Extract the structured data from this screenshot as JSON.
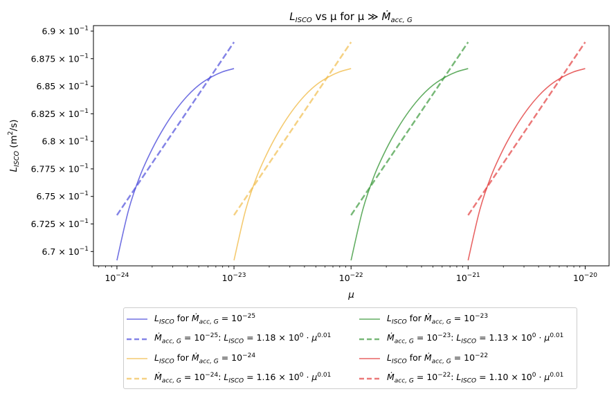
{
  "chart_data": {
    "type": "line",
    "title": {
      "main": "L",
      "main_sub": "ISCO",
      "rest": " vs μ for μ ≫ ",
      "mdot": "Ṁ",
      "mdot_sub": "acc, G"
    },
    "xlabel": "μ",
    "ylabel": {
      "main": "L",
      "sub": "ISCO",
      "unit_pre": " (m",
      "unit_sup": "2",
      "unit_post": "/s)"
    },
    "x_scale": "log",
    "xlim": [
      6.3e-25,
      1.6e-20
    ],
    "ylim": [
      0.6687,
      0.6905
    ],
    "x_ticks": [
      {
        "exp": "−24",
        "value": 1e-24
      },
      {
        "exp": "−23",
        "value": 1e-23
      },
      {
        "exp": "−22",
        "value": 1e-22
      },
      {
        "exp": "−21",
        "value": 1e-21
      },
      {
        "exp": "−20",
        "value": 1e-20
      }
    ],
    "y_ticks": [
      {
        "mant": "6.7",
        "value": 0.67
      },
      {
        "mant": "6.725",
        "value": 0.6725
      },
      {
        "mant": "6.75",
        "value": 0.675
      },
      {
        "mant": "6.775",
        "value": 0.6775
      },
      {
        "mant": "6.8",
        "value": 0.68
      },
      {
        "mant": "6.825",
        "value": 0.6825
      },
      {
        "mant": "6.85",
        "value": 0.685
      },
      {
        "mant": "6.875",
        "value": 0.6875
      },
      {
        "mant": "6.9",
        "value": 0.69
      }
    ],
    "y_tick_base": "10",
    "y_tick_exp": "−1",
    "x_tick_base": "10",
    "grid": false,
    "legend_position": "below",
    "series": [
      {
        "kind": "solid",
        "color": "#4040d8",
        "mdot_exp": "−25",
        "x": [
          1e-24,
          1.26e-24,
          1.58e-24,
          2e-24,
          2.51e-24,
          3.16e-24,
          3.98e-24,
          5.01e-24,
          6.31e-24,
          7.94e-24,
          1e-23
        ],
        "y": [
          0.6692,
          0.6738,
          0.6769,
          0.6793,
          0.6812,
          0.6828,
          0.6841,
          0.6851,
          0.6858,
          0.6863,
          0.6866
        ]
      },
      {
        "kind": "dashed",
        "color": "#4040d8",
        "mdot_exp": "−25",
        "coef": "1.18",
        "coef_exp": "0",
        "power": "0.01",
        "x": [
          1e-24,
          1e-23
        ],
        "y": [
          0.6733,
          0.689
        ]
      },
      {
        "kind": "solid",
        "color": "#f0b840",
        "mdot_exp": "−24",
        "x": [
          1e-23,
          1.26e-23,
          1.58e-23,
          2e-23,
          2.51e-23,
          3.16e-23,
          3.98e-23,
          5.01e-23,
          6.31e-23,
          7.94e-23,
          1e-22
        ],
        "y": [
          0.6692,
          0.6738,
          0.6769,
          0.6793,
          0.6812,
          0.6828,
          0.6841,
          0.6851,
          0.6858,
          0.6863,
          0.6866
        ]
      },
      {
        "kind": "dashed",
        "color": "#f0b840",
        "mdot_exp": "−24",
        "coef": "1.16",
        "coef_exp": "0",
        "power": "0.01",
        "x": [
          1e-23,
          1e-22
        ],
        "y": [
          0.6733,
          0.689
        ]
      },
      {
        "kind": "solid",
        "color": "#2e922e",
        "mdot_exp": "−23",
        "x": [
          1e-22,
          1.26e-22,
          1.58e-22,
          2e-22,
          2.51e-22,
          3.16e-22,
          3.98e-22,
          5.01e-22,
          6.31e-22,
          7.94e-22,
          1e-21
        ],
        "y": [
          0.6692,
          0.6738,
          0.6769,
          0.6793,
          0.6812,
          0.6828,
          0.6841,
          0.6851,
          0.6858,
          0.6863,
          0.6866
        ]
      },
      {
        "kind": "dashed",
        "color": "#2e922e",
        "mdot_exp": "−23",
        "coef": "1.13",
        "coef_exp": "0",
        "power": "0.01",
        "x": [
          1e-22,
          1e-21
        ],
        "y": [
          0.6733,
          0.689
        ]
      },
      {
        "kind": "solid",
        "color": "#e03030",
        "mdot_exp": "−22",
        "x": [
          1e-21,
          1.26e-21,
          1.58e-21,
          2e-21,
          2.51e-21,
          3.16e-21,
          3.98e-21,
          5.01e-21,
          6.31e-21,
          7.94e-21,
          1e-20
        ],
        "y": [
          0.6692,
          0.6738,
          0.6769,
          0.6793,
          0.6812,
          0.6828,
          0.6841,
          0.6851,
          0.6858,
          0.6863,
          0.6866
        ]
      },
      {
        "kind": "dashed",
        "color": "#e03030",
        "mdot_exp": "−22",
        "coef": "1.10",
        "coef_exp": "0",
        "power": "0.01",
        "x": [
          1e-21,
          1e-20
        ],
        "y": [
          0.6733,
          0.689
        ]
      }
    ],
    "legend": {
      "solid_pre": "L",
      "solid_sub": "ISCO",
      "solid_mid": " for ",
      "mdot": "Ṁ",
      "mdot_sub": "acc, G",
      "eq": " = 10",
      "dashed_colon": ": L",
      "dashed_sub": "ISCO",
      "dashed_eq": " = ",
      "times": " × 10",
      "dot": " · μ"
    }
  }
}
